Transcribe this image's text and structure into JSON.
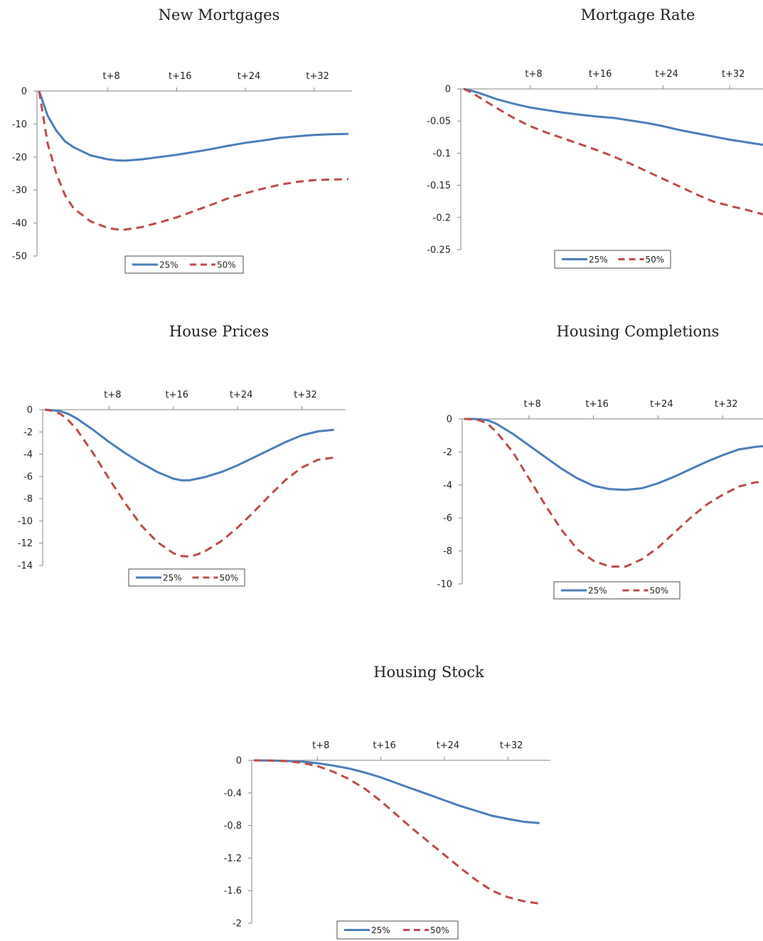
{
  "colors": {
    "series_25": "#4a7ebb",
    "series_50": "#be4b48",
    "axis": "#868686"
  },
  "chart_data": [
    {
      "type": "line",
      "title": "New Mortgages",
      "xlabel": "",
      "ylabel": "",
      "x_tick_labels": [
        "t+8",
        "t+16",
        "t+24",
        "t+32"
      ],
      "x_ticks": [
        8,
        16,
        24,
        32
      ],
      "xlim": [
        0,
        36
      ],
      "ylim": [
        -50,
        0
      ],
      "y_ticks": [
        0,
        -10,
        -20,
        -30,
        -40,
        -50
      ],
      "y_tick_labels": [
        "0",
        "-10",
        "-20",
        "-30",
        "-40",
        "-50"
      ],
      "legend": "bottom-center",
      "grid": false,
      "series": [
        {
          "name": "25%",
          "style": "solid",
          "x": [
            0,
            1,
            2,
            3,
            4,
            6,
            8,
            9,
            10,
            12,
            14,
            16,
            18,
            20,
            22,
            24,
            26,
            28,
            30,
            32,
            34,
            36
          ],
          "values": [
            0,
            -7.5,
            -12,
            -15.2,
            -17,
            -19.5,
            -20.7,
            -21,
            -21.1,
            -20.7,
            -20,
            -19.3,
            -18.5,
            -17.6,
            -16.6,
            -15.7,
            -15,
            -14.2,
            -13.7,
            -13.3,
            -13.1,
            -13
          ]
        },
        {
          "name": "50%",
          "style": "dashed",
          "x": [
            0,
            1,
            2,
            3,
            4,
            6,
            8,
            9,
            10,
            12,
            14,
            16,
            18,
            20,
            22,
            24,
            26,
            28,
            30,
            32,
            34,
            36
          ],
          "values": [
            0,
            -16,
            -25,
            -31.5,
            -35.5,
            -39.5,
            -41.5,
            -41.9,
            -42,
            -41.2,
            -39.8,
            -38.3,
            -36.4,
            -34.5,
            -32.5,
            -31,
            -29.6,
            -28.4,
            -27.5,
            -27,
            -26.8,
            -26.7
          ]
        }
      ]
    },
    {
      "type": "line",
      "title": "Mortgage Rate",
      "xlabel": "",
      "ylabel": "",
      "x_tick_labels": [
        "t+8",
        "t+16",
        "t+24",
        "t+32"
      ],
      "x_ticks": [
        8,
        16,
        24,
        32
      ],
      "xlim": [
        0,
        36
      ],
      "ylim": [
        -0.25,
        0
      ],
      "y_ticks": [
        0,
        -0.05,
        -0.1,
        -0.15,
        -0.2,
        -0.25
      ],
      "y_tick_labels": [
        "0",
        "-0.05",
        "-0.1",
        "-0.15",
        "-0.2",
        "-0.25"
      ],
      "legend": "bottom-center",
      "grid": false,
      "series": [
        {
          "name": "25%",
          "style": "solid",
          "x": [
            0,
            1,
            2,
            4,
            6,
            8,
            10,
            12,
            14,
            16,
            18,
            20,
            22,
            24,
            26,
            28,
            30,
            32,
            34,
            36
          ],
          "values": [
            0,
            -0.003,
            -0.007,
            -0.016,
            -0.023,
            -0.029,
            -0.033,
            -0.037,
            -0.04,
            -0.043,
            -0.045,
            -0.049,
            -0.053,
            -0.058,
            -0.064,
            -0.069,
            -0.074,
            -0.079,
            -0.083,
            -0.087
          ]
        },
        {
          "name": "50%",
          "style": "dashed",
          "x": [
            0,
            1,
            2,
            4,
            6,
            8,
            10,
            12,
            14,
            16,
            18,
            20,
            22,
            24,
            26,
            28,
            30,
            32,
            34,
            36
          ],
          "values": [
            0,
            -0.006,
            -0.014,
            -0.03,
            -0.045,
            -0.058,
            -0.068,
            -0.077,
            -0.086,
            -0.095,
            -0.105,
            -0.116,
            -0.128,
            -0.14,
            -0.152,
            -0.164,
            -0.175,
            -0.182,
            -0.188,
            -0.195
          ]
        }
      ]
    },
    {
      "type": "line",
      "title": "House Prices",
      "xlabel": "",
      "ylabel": "",
      "x_tick_labels": [
        "t+8",
        "t+16",
        "t+24",
        "t+32"
      ],
      "x_ticks": [
        8,
        16,
        24,
        32
      ],
      "xlim": [
        0,
        37
      ],
      "ylim": [
        -14,
        0
      ],
      "y_ticks": [
        0,
        -2,
        -4,
        -6,
        -8,
        -10,
        -12,
        -14
      ],
      "y_tick_labels": [
        "0",
        "-2",
        "-4",
        "-6",
        "-8",
        "-10",
        "-12",
        "-14"
      ],
      "legend": "bottom-center",
      "grid": false,
      "series": [
        {
          "name": "25%",
          "style": "solid",
          "x": [
            0,
            1,
            2,
            3,
            4,
            6,
            8,
            10,
            12,
            14,
            16,
            17,
            18,
            19,
            20,
            22,
            24,
            26,
            28,
            30,
            32,
            34,
            36
          ],
          "values": [
            0,
            -0.05,
            -0.15,
            -0.4,
            -0.8,
            -1.8,
            -2.9,
            -3.9,
            -4.8,
            -5.6,
            -6.2,
            -6.35,
            -6.35,
            -6.2,
            -6.05,
            -5.6,
            -5.0,
            -4.3,
            -3.6,
            -2.9,
            -2.3,
            -1.95,
            -1.8
          ]
        },
        {
          "name": "50%",
          "style": "dashed",
          "x": [
            0,
            1,
            2,
            3,
            4,
            6,
            8,
            10,
            12,
            14,
            16,
            17,
            18,
            19,
            20,
            22,
            24,
            26,
            28,
            30,
            32,
            34,
            36
          ],
          "values": [
            0,
            -0.1,
            -0.4,
            -1.0,
            -1.8,
            -3.9,
            -6.2,
            -8.4,
            -10.4,
            -11.9,
            -12.9,
            -13.15,
            -13.2,
            -13.0,
            -12.7,
            -11.8,
            -10.6,
            -9.2,
            -7.7,
            -6.3,
            -5.2,
            -4.5,
            -4.3
          ]
        }
      ]
    },
    {
      "type": "line",
      "title": "Housing Completions",
      "xlabel": "",
      "ylabel": "",
      "x_tick_labels": [
        "t+8",
        "t+16",
        "t+24",
        "t+32"
      ],
      "x_ticks": [
        8,
        16,
        24,
        32
      ],
      "xlim": [
        0,
        37
      ],
      "ylim": [
        -10,
        0
      ],
      "y_ticks": [
        0,
        -2,
        -4,
        -6,
        -8,
        -10
      ],
      "y_tick_labels": [
        "0",
        "-2",
        "-4",
        "-6",
        "-8",
        "-10"
      ],
      "legend": "bottom-center",
      "grid": false,
      "series": [
        {
          "name": "25%",
          "style": "solid",
          "x": [
            0,
            1,
            2,
            3,
            4,
            6,
            8,
            10,
            12,
            14,
            16,
            18,
            20,
            22,
            24,
            26,
            28,
            30,
            32,
            34,
            36,
            37
          ],
          "values": [
            0,
            0,
            -0.02,
            -0.1,
            -0.3,
            -0.9,
            -1.6,
            -2.3,
            -3.0,
            -3.6,
            -4.05,
            -4.25,
            -4.3,
            -4.2,
            -3.9,
            -3.5,
            -3.05,
            -2.6,
            -2.2,
            -1.85,
            -1.7,
            -1.65
          ]
        },
        {
          "name": "50%",
          "style": "dashed",
          "x": [
            0,
            1,
            2,
            3,
            4,
            6,
            8,
            10,
            12,
            14,
            16,
            18,
            20,
            22,
            24,
            26,
            28,
            30,
            32,
            34,
            36,
            37
          ],
          "values": [
            0,
            -0.02,
            -0.1,
            -0.35,
            -0.8,
            -2.0,
            -3.6,
            -5.2,
            -6.7,
            -7.9,
            -8.6,
            -8.95,
            -8.95,
            -8.5,
            -7.8,
            -6.9,
            -6.0,
            -5.2,
            -4.6,
            -4.1,
            -3.85,
            -3.8
          ]
        }
      ]
    },
    {
      "type": "line",
      "title": "Housing Stock",
      "xlabel": "",
      "ylabel": "",
      "x_tick_labels": [
        "t+8",
        "t+16",
        "t+24",
        "t+32"
      ],
      "x_ticks": [
        8,
        16,
        24,
        32
      ],
      "xlim": [
        0,
        37
      ],
      "ylim": [
        -2,
        0
      ],
      "y_ticks": [
        0,
        -0.4,
        -0.8,
        -1.2,
        -1.6,
        -2
      ],
      "y_tick_labels": [
        "0",
        "-0.4",
        "-0.8",
        "-1.2",
        "-1.6",
        "-2"
      ],
      "legend": "bottom-center",
      "grid": false,
      "series": [
        {
          "name": "25%",
          "style": "solid",
          "x": [
            0,
            2,
            4,
            6,
            8,
            10,
            12,
            14,
            16,
            18,
            20,
            22,
            24,
            26,
            28,
            30,
            32,
            34,
            36
          ],
          "values": [
            0,
            -0.002,
            -0.006,
            -0.015,
            -0.035,
            -0.065,
            -0.1,
            -0.15,
            -0.21,
            -0.28,
            -0.35,
            -0.42,
            -0.49,
            -0.56,
            -0.62,
            -0.68,
            -0.72,
            -0.755,
            -0.77
          ]
        },
        {
          "name": "50%",
          "style": "dashed",
          "x": [
            0,
            2,
            4,
            6,
            8,
            10,
            12,
            14,
            16,
            18,
            20,
            22,
            24,
            26,
            28,
            30,
            32,
            34,
            36
          ],
          "values": [
            0,
            -0.003,
            -0.01,
            -0.03,
            -0.07,
            -0.14,
            -0.23,
            -0.35,
            -0.5,
            -0.67,
            -0.84,
            -1.0,
            -1.16,
            -1.32,
            -1.47,
            -1.6,
            -1.68,
            -1.73,
            -1.76
          ]
        }
      ]
    }
  ]
}
